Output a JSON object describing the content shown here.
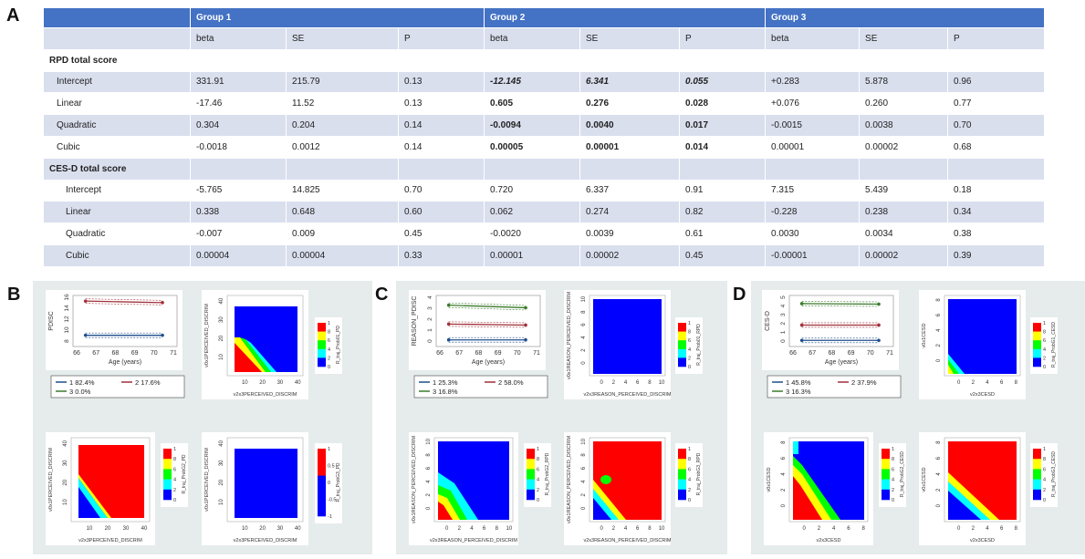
{
  "panels": {
    "a": "A",
    "b": "B",
    "c": "C",
    "d": "D"
  },
  "table": {
    "groups": [
      "Group 1",
      "Group 2",
      "Group 3"
    ],
    "subheaders": [
      "beta",
      "SE",
      "P"
    ],
    "sections": [
      {
        "title": "RPD total score",
        "rows": [
          {
            "label": "Intercept",
            "values": [
              "331.91",
              "215.79",
              "0.13",
              "-12.145",
              "6.341",
              "0.055",
              "+0.283",
              "5.878",
              "0.96"
            ]
          },
          {
            "label": "Linear",
            "values": [
              "-17.46",
              "11.52",
              "0.13",
              "0.605",
              "0.276",
              "0.028",
              "+0.076",
              "0.260",
              "0.77"
            ]
          },
          {
            "label": "Quadratic",
            "values": [
              "0.304",
              "0.204",
              "0.14",
              "-0.0094",
              "0.0040",
              "0.017",
              "-0.0015",
              "0.0038",
              "0.70"
            ]
          },
          {
            "label": "Cubic",
            "values": [
              "-0.0018",
              "0.0012",
              "0.14",
              "0.00005",
              "0.00001",
              "0.014",
              "0.00001",
              "0.00002",
              "0.68"
            ]
          }
        ]
      },
      {
        "title": "CES-D total score",
        "rows": [
          {
            "label": "Intercept",
            "values": [
              "-5.765",
              "14.825",
              "0.70",
              "0.720",
              "6.337",
              "0.91",
              "7.315",
              "5.439",
              "0.18"
            ]
          },
          {
            "label": "Linear",
            "values": [
              "0.338",
              "0.648",
              "0.60",
              "0.062",
              "0.274",
              "0.82",
              "-0.228",
              "0.238",
              "0.34"
            ]
          },
          {
            "label": "Quadratic",
            "values": [
              "-0.007",
              "0.009",
              "0.45",
              "-0.0020",
              "0.0039",
              "0.61",
              "0.0030",
              "0.0034",
              "0.38"
            ]
          },
          {
            "label": "Cubic",
            "values": [
              "0.00004",
              "0.00004",
              "0.33",
              "0.00001",
              "0.00002",
              "0.45",
              "-0.00001",
              "0.00002",
              "0.39"
            ]
          }
        ]
      }
    ]
  },
  "figures": {
    "b": {
      "traj_ylabel": "PDISC",
      "traj_xlabel": "Age (years)",
      "traj_yticks": [
        "8",
        "10",
        "12",
        "14",
        "16"
      ],
      "xticks": [
        "66",
        "67",
        "68",
        "69",
        "70",
        "71"
      ],
      "legend": [
        "1   82.4%",
        "2   17.6%",
        "3   0.0%"
      ],
      "heat1_ylabel": "v0x1PERCEIVED_DISCRIM",
      "heat1_xlabel": "v2x3PERCEIVED_DISCRIM",
      "heat2_ylabel": "v0x1PERCEIVED_DISCRIM",
      "heat2_xlabel": "v2x3PERCEIVED_DISCRIM",
      "heat3_ylabel": "v0x1PERCEIVED_DISCRIM",
      "heat3_xlabel": "v2x3PERCEIVED_DISCRIM",
      "cb1": "R_traj_Prob01_PD",
      "cb2": "R_traj_ProbG2_PD",
      "cb3": "R_traj_ProbG3_PD",
      "heat_ticks": [
        "10",
        "20",
        "30",
        "40"
      ],
      "cb_ticks": [
        "0",
        "2",
        "4",
        "6",
        "8",
        "1"
      ],
      "cb3_ticks": [
        "-1",
        "-0.5",
        "0",
        "0.5",
        "1"
      ]
    },
    "c": {
      "traj_ylabel": "REASON_PDISC",
      "traj_xlabel": "Age (years)",
      "traj_yticks": [
        "0",
        "1",
        "2",
        "3",
        "4"
      ],
      "xticks": [
        "66",
        "67",
        "68",
        "69",
        "70",
        "71"
      ],
      "legend": [
        "1   25.3%",
        "2   58.0%",
        "3   16.8%"
      ],
      "heat1_ylabel": "v0x1REASON_PERCEIVED_DISCRIM",
      "heat1_xlabel": "v2x3REASON_PERCEIVED_DISCRIM",
      "heat2_ylabel": "v0x1REASON_PERCEIVED_DISCRIM",
      "heat2_xlabel": "v2x3REASON_PERCEIVED_DISCRIM",
      "heat3_ylabel": "v0x1REASON_PERCEIVED_DISCRIM",
      "heat3_xlabel": "v2x3REASON_PERCEIVED_DISCRIM",
      "cb1": "R_traj_Prob01_RPD",
      "cb2": "R_traj_ProbG2_RPD",
      "cb3": "R_traj_ProbG3_RPD",
      "heat_ticks": [
        "0",
        "2",
        "4",
        "6",
        "8",
        "10"
      ],
      "cb_ticks": [
        "0",
        "2",
        "4",
        "6",
        "8",
        "1"
      ]
    },
    "d": {
      "traj_ylabel": "CES-D",
      "traj_xlabel": "Age (years)",
      "traj_yticks": [
        "0",
        "1",
        "2",
        "3",
        "4",
        "5"
      ],
      "xticks": [
        "66",
        "67",
        "68",
        "69",
        "70",
        "71"
      ],
      "legend": [
        "1   45.8%",
        "2   37.9%",
        "3   16.3%"
      ],
      "heat1_ylabel": "v0x1CESD",
      "heat1_xlabel": "v2x3CESD",
      "heat2_ylabel": "v0x1CESD",
      "heat2_xlabel": "v2x3CESD",
      "heat3_ylabel": "v0x1CESD",
      "heat3_xlabel": "v2x3CESD",
      "cb1": "R_traj_ProbG1_CESD",
      "cb2": "R_traj_ProbG2_CESD",
      "cb3": "R_traj_ProbG3_CESD",
      "heat_ticks": [
        "0",
        "2",
        "4",
        "6",
        "8"
      ],
      "cb_ticks": [
        "0",
        "2",
        "4",
        "6",
        "8",
        "1"
      ]
    }
  },
  "colors": {
    "header": "#4472c4",
    "stripe": "#dadfee",
    "panel_bg": "#e5eceb",
    "blue": "#0000ff",
    "red": "#ff0000",
    "green": "#00ff00",
    "cyan": "#00ffff",
    "yellow": "#ffff00"
  }
}
